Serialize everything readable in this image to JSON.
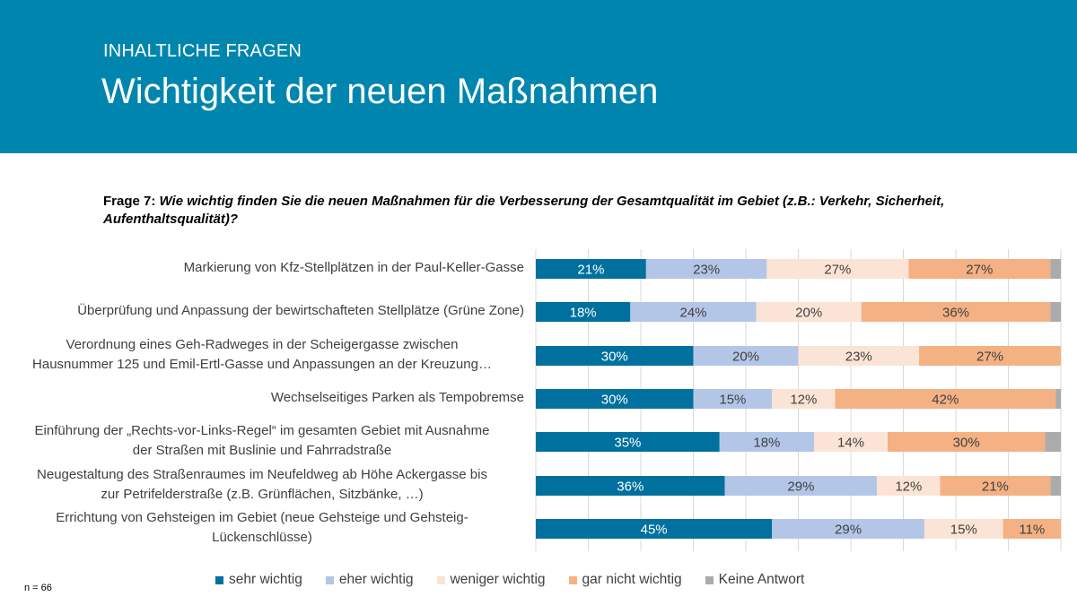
{
  "header": {
    "kicker": "INHALTLICHE FRAGEN",
    "title": "Wichtigkeit der neuen Maßnahmen",
    "color": "#0086AE"
  },
  "question": {
    "prefix": "Frage 7: ",
    "text": "Wie wichtig finden Sie die neuen Maßnahmen für die Verbesserung der Gesamtqualität im Gebiet (z.B.: Verkehr, Sicherheit, Aufenthaltsqualität)?"
  },
  "sample": "n = 66",
  "chart_data": {
    "type": "bar",
    "orientation": "horizontal",
    "stacked": "100%",
    "xlim": [
      0,
      100
    ],
    "grid": true,
    "legend_position": "bottom",
    "categories": [
      [
        "Markierung von Kfz-Stellplätzen in der Paul-Keller-Gasse"
      ],
      [
        "Überprüfung und Anpassung der bewirtschafteten Stellplätze (Grüne Zone)"
      ],
      [
        "Verordnung eines Geh-Radweges in der Scheigergasse zwischen",
        "Hausnummer 125 und Emil-Ertl-Gasse und Anpassungen an der Kreuzung…"
      ],
      [
        "Wechselseitiges Parken als Tempobremse"
      ],
      [
        "Einführung der „Rechts-vor-Links-Regel“ im gesamten Gebiet mit Ausnahme",
        "der Straßen mit Buslinie und Fahrradstraße"
      ],
      [
        "Neugestaltung des Straßenraumes im Neufeldweg ab Höhe Ackergasse bis",
        "zur Petrifelderstraße (z.B. Grünflächen, Sitzbänke, …)"
      ],
      [
        "Errichtung von Gehsteigen im Gebiet (neue Gehsteige und Gehsteig-",
        "Lückenschlüsse)"
      ]
    ],
    "series": [
      {
        "name": "sehr wichtig",
        "color": "#00719E",
        "label_color": "#ffffff",
        "values": [
          21,
          18,
          30,
          30,
          35,
          36,
          45
        ]
      },
      {
        "name": "eher wichtig",
        "color": "#B4C6E7",
        "label_color": "#404040",
        "values": [
          23,
          24,
          20,
          15,
          18,
          29,
          29
        ]
      },
      {
        "name": "weniger wichtig",
        "color": "#FBE4D5",
        "label_color": "#404040",
        "values": [
          27,
          20,
          23,
          12,
          14,
          12,
          15
        ]
      },
      {
        "name": "gar nicht wichtig",
        "color": "#F4B183",
        "label_color": "#404040",
        "values": [
          27,
          36,
          27,
          42,
          30,
          21,
          11
        ]
      },
      {
        "name": "Keine Antwort",
        "color": "#ABABAB",
        "label_color": "#404040",
        "values": [
          2,
          2,
          0,
          1,
          3,
          2,
          0
        ],
        "show_labels": false
      }
    ]
  }
}
